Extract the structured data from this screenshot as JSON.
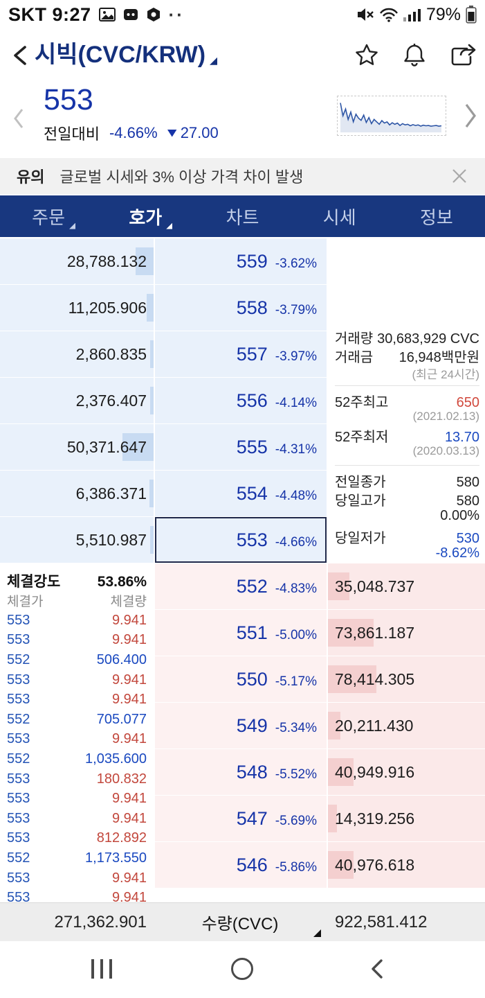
{
  "status_bar": {
    "carrier_time": "SKT 9:27",
    "battery": "79%"
  },
  "header": {
    "title": "시빅(CVC/KRW)"
  },
  "price": {
    "current": "553",
    "label": "전일대비",
    "change_pct": "-4.66%",
    "change_amt": "27.00"
  },
  "sparkline": {
    "points": [
      0.92,
      0.5,
      0.72,
      0.38,
      0.62,
      0.3,
      0.55,
      0.42,
      0.35,
      0.52,
      0.28,
      0.44,
      0.24,
      0.38,
      0.3,
      0.22,
      0.34,
      0.26,
      0.3,
      0.2,
      0.27,
      0.22,
      0.26,
      0.18,
      0.24,
      0.2,
      0.22,
      0.17,
      0.21,
      0.18,
      0.2,
      0.16,
      0.19,
      0.17,
      0.18,
      0.16,
      0.17,
      0.18,
      0.16,
      0.17
    ]
  },
  "notice": {
    "tag": "유의",
    "text": "글로벌 시세와 3% 이상 가격 차이 발생"
  },
  "tabs": [
    {
      "label": "주문",
      "dropdown": true,
      "active": false
    },
    {
      "label": "호가",
      "dropdown": true,
      "active": true
    },
    {
      "label": "차트",
      "dropdown": false,
      "active": false
    },
    {
      "label": "시세",
      "dropdown": false,
      "active": false
    },
    {
      "label": "정보",
      "dropdown": false,
      "active": false
    }
  ],
  "order_book": {
    "current_price": "553",
    "asks": [
      {
        "qty": "28,788.132",
        "size": 28788.132,
        "price": "559",
        "pct": "-3.62%",
        "current": false
      },
      {
        "qty": "11,205.906",
        "size": 11205.906,
        "price": "558",
        "pct": "-3.79%",
        "current": false
      },
      {
        "qty": "2,860.835",
        "size": 2860.835,
        "price": "557",
        "pct": "-3.97%",
        "current": false
      },
      {
        "qty": "2,376.407",
        "size": 2376.407,
        "price": "556",
        "pct": "-4.14%",
        "current": false
      },
      {
        "qty": "50,371.647",
        "size": 50371.647,
        "price": "555",
        "pct": "-4.31%",
        "current": false
      },
      {
        "qty": "6,386.371",
        "size": 6386.371,
        "price": "554",
        "pct": "-4.48%",
        "current": false
      },
      {
        "qty": "5,510.987",
        "size": 5510.987,
        "price": "553",
        "pct": "-4.66%",
        "current": true
      }
    ],
    "bids": [
      {
        "price": "552",
        "pct": "-4.83%",
        "qty": "35,048.737",
        "size": 35048.737
      },
      {
        "price": "551",
        "pct": "-5.00%",
        "qty": "73,861.187",
        "size": 73861.187
      },
      {
        "price": "550",
        "pct": "-5.17%",
        "qty": "78,414.305",
        "size": 78414.305
      },
      {
        "price": "549",
        "pct": "-5.34%",
        "qty": "20,211.430",
        "size": 20211.43
      },
      {
        "price": "548",
        "pct": "-5.52%",
        "qty": "40,949.916",
        "size": 40949.916
      },
      {
        "price": "547",
        "pct": "-5.69%",
        "qty": "14,319.256",
        "size": 14319.256
      },
      {
        "price": "546",
        "pct": "-5.86%",
        "qty": "40,976.618",
        "size": 40976.618
      }
    ]
  },
  "info": {
    "volume_label": "거래량",
    "volume": "30,683,929 CVC",
    "value_label": "거래금",
    "value": "16,948백만원",
    "recent": "(최근 24시간)",
    "high52_label": "52주최고",
    "high52": "650",
    "high52_date": "(2021.02.13)",
    "low52_label": "52주최저",
    "low52": "13.70",
    "low52_date": "(2020.03.13)",
    "prev_close_label": "전일종가",
    "prev_close": "580",
    "day_high_label": "당일고가",
    "day_high": "580",
    "day_high_pct": "0.00%",
    "day_low_label": "당일저가",
    "day_low": "530",
    "day_low_pct": "-8.62%"
  },
  "executions": {
    "strength_label": "체결강도",
    "strength": "53.86%",
    "price_header": "체결가",
    "qty_header": "체결량",
    "rows": [
      {
        "price": "553",
        "qty": "9.941",
        "side": "buy"
      },
      {
        "price": "553",
        "qty": "9.941",
        "side": "buy"
      },
      {
        "price": "552",
        "qty": "506.400",
        "side": "sell"
      },
      {
        "price": "553",
        "qty": "9.941",
        "side": "buy"
      },
      {
        "price": "553",
        "qty": "9.941",
        "side": "buy"
      },
      {
        "price": "552",
        "qty": "705.077",
        "side": "sell"
      },
      {
        "price": "553",
        "qty": "9.941",
        "side": "buy"
      },
      {
        "price": "552",
        "qty": "1,035.600",
        "side": "sell"
      },
      {
        "price": "553",
        "qty": "180.832",
        "side": "buy"
      },
      {
        "price": "553",
        "qty": "9.941",
        "side": "buy"
      },
      {
        "price": "553",
        "qty": "9.941",
        "side": "buy"
      },
      {
        "price": "553",
        "qty": "812.892",
        "side": "buy"
      },
      {
        "price": "552",
        "qty": "1,173.550",
        "side": "sell"
      },
      {
        "price": "553",
        "qty": "9.941",
        "side": "buy"
      },
      {
        "price": "553",
        "qty": "9.941",
        "side": "buy"
      }
    ]
  },
  "totals": {
    "ask_total": "271,362.901",
    "unit_label": "수량(CVC)",
    "bid_total": "922,581.412"
  },
  "colors": {
    "brand_navy": "#18377f",
    "price_blue": "#1634a8",
    "down_blue": "#1a49c0",
    "up_red": "#d1493d",
    "ask_bg": "#e9f1fb",
    "ask_bar": "#c8dbf2",
    "bid_bg": "#fdf1f1",
    "bid_qty_bg": "#fbe9e9",
    "bid_bar": "#f4cfcf"
  }
}
